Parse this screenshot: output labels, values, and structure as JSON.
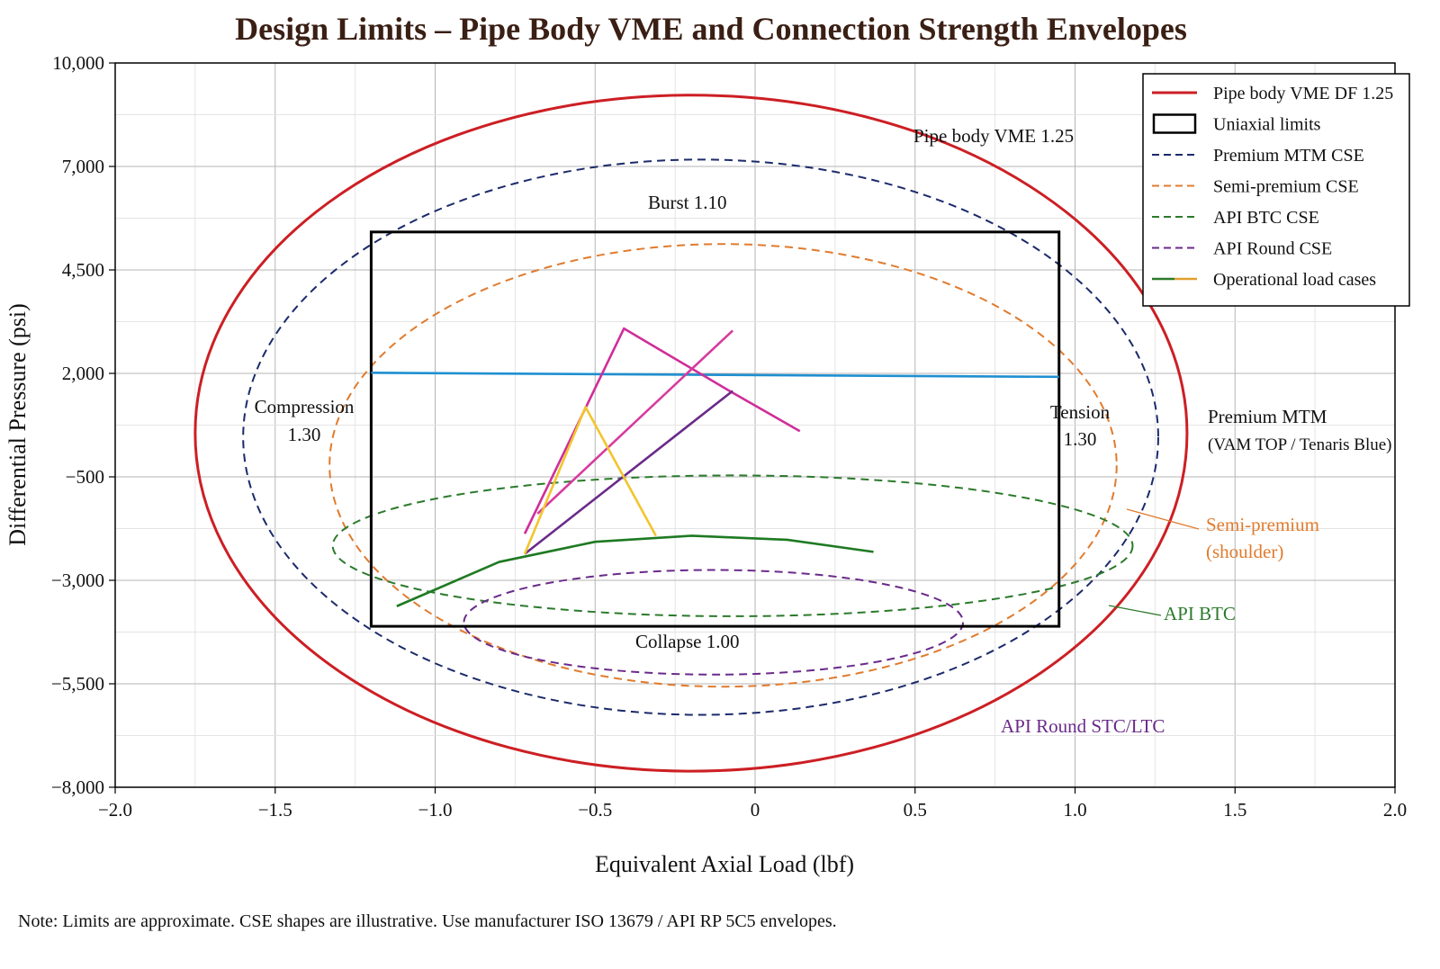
{
  "chart_data": {
    "type": "line",
    "title": "Design Limits – Pipe Body VME and Connection Strength Envelopes",
    "xlabel": "Equivalent Axial Load (lbf)",
    "ylabel": "Differential Pressure (psi)",
    "xlim": [
      -2.0,
      2.0
    ],
    "ylim": [
      -8000,
      10000
    ],
    "xticks": [
      "−2.0",
      "−1.5",
      "−1.0",
      "−0.5",
      "0",
      "0.5",
      "1.0",
      "1.5",
      "2.0"
    ],
    "yticks": [
      "10,000",
      "7,000",
      "4,500",
      "2,000",
      "−500",
      "−3,000",
      "−5,500",
      "−8,000"
    ],
    "grid": true,
    "legend_position": "top-right",
    "legend": [
      {
        "label": "Pipe body VME DF 1.25",
        "color": "#cc1f24",
        "style": "solid"
      },
      {
        "label": "Uniaxial limits",
        "color": "#000000",
        "style": "box"
      },
      {
        "label": "Premium MTM CSE",
        "color": "#1b2a6b",
        "style": "dashed"
      },
      {
        "label": "Semi-premium CSE",
        "color": "#e07b2e",
        "style": "dashed"
      },
      {
        "label": "API BTC CSE",
        "color": "#2b7a2b",
        "style": "dashed"
      },
      {
        "label": "API Round CSE",
        "color": "#6a2a8a",
        "style": "dashed"
      },
      {
        "label": "Operational load cases",
        "color": "#2b7a2b",
        "style": "solid-mixed"
      }
    ],
    "envelopes": [
      {
        "name": "Pipe body VME DF 1.25",
        "color": "#cc1f24",
        "dash": false,
        "center": [
          -0.2,
          800
        ],
        "rx": 1.55,
        "ry": 8400
      },
      {
        "name": "Premium MTM CSE",
        "color": "#1b2a6b",
        "dash": true,
        "center": [
          -0.17,
          700
        ],
        "rx": 1.43,
        "ry": 6900
      },
      {
        "name": "Semi-premium CSE",
        "color": "#e07b2e",
        "dash": true,
        "center": [
          -0.1,
          0
        ],
        "rx": 1.23,
        "ry": 5500
      },
      {
        "name": "API BTC CSE",
        "color": "#2b7a2b",
        "dash": true,
        "center": [
          -0.07,
          -2000
        ],
        "rx": 1.25,
        "ry": 1750
      },
      {
        "name": "API Round CSE",
        "color": "#6a2a8a",
        "dash": true,
        "center": [
          -0.13,
          -3900
        ],
        "rx": 0.78,
        "ry": 1300
      }
    ],
    "uniaxial_box": {
      "x": [
        -1.2,
        0.95
      ],
      "y": [
        -4000,
        5800
      ]
    },
    "load_cases": [
      {
        "color": "#1f8fd0",
        "points": [
          [
            -1.2,
            2300
          ],
          [
            0.95,
            2200
          ]
        ]
      },
      {
        "color": "#cf2e9a",
        "points": [
          [
            -0.72,
            -1700
          ],
          [
            -0.41,
            3400
          ],
          [
            -0.08,
            1850
          ],
          [
            0.14,
            850
          ]
        ]
      },
      {
        "color": "#d63b9e",
        "points": [
          [
            -0.68,
            -1200
          ],
          [
            -0.07,
            3350
          ]
        ]
      },
      {
        "color": "#6a2a8a",
        "points": [
          [
            -0.72,
            -2200
          ],
          [
            -0.07,
            1850
          ]
        ]
      },
      {
        "color": "#f2c52e",
        "points": [
          [
            -0.72,
            -2200
          ],
          [
            -0.53,
            1450
          ],
          [
            -0.31,
            -1750
          ]
        ]
      },
      {
        "color": "#1e7a22",
        "points": [
          [
            -1.12,
            -3500
          ],
          [
            -0.8,
            -2400
          ],
          [
            -0.5,
            -1900
          ],
          [
            -0.2,
            -1750
          ],
          [
            0.1,
            -1850
          ],
          [
            0.37,
            -2150
          ]
        ]
      }
    ],
    "annotations": {
      "pipe_body": "Pipe body VME 1.25",
      "burst": "Burst 1.10",
      "collapse": "Collapse 1.00",
      "compression_1": "Compression",
      "compression_2": "1.30",
      "tension_1": "Tension",
      "tension_2": "1.30",
      "premium_1": "Premium MTM",
      "premium_2": "(VAM TOP / Tenaris Blue)",
      "semi_1": "Semi-premium",
      "semi_2": "(shoulder)",
      "api_btc": "API BTC",
      "api_round": "API Round STC/LTC"
    },
    "note": "Note: Limits are approximate. CSE shapes are illustrative. Use manufacturer ISO 13679 / API RP 5C5 envelopes."
  }
}
